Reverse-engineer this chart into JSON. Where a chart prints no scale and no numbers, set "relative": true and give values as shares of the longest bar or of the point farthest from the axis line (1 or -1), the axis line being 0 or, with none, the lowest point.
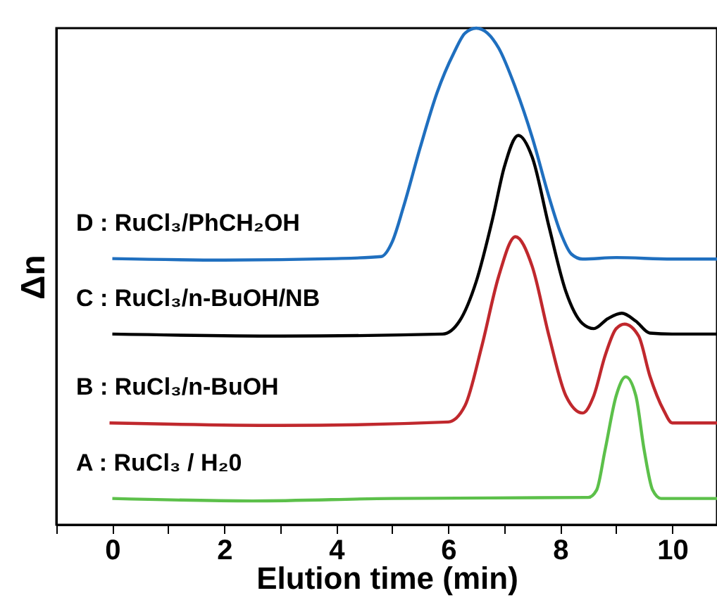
{
  "chart_data": {
    "type": "line",
    "relative": true,
    "xlabel": "Elution time (min)",
    "ylabel": "Δn",
    "xlim": [
      -1,
      10.8
    ],
    "xticks": [
      {
        "value": -1,
        "label": null
      },
      0,
      {
        "value": 1,
        "label": null
      },
      2,
      {
        "value": 3,
        "label": null
      },
      4,
      {
        "value": 5,
        "label": null
      },
      6,
      {
        "value": 7,
        "label": null
      },
      8,
      {
        "value": 9,
        "label": null
      },
      10
    ],
    "series": [
      {
        "name": "D : RuCl₃/PhCH₂OH",
        "color": "#1f6fbf",
        "x": [
          0,
          2,
          4,
          4.8,
          5.0,
          5.2,
          5.5,
          5.8,
          6.1,
          6.3,
          6.5,
          6.7,
          6.9,
          7.2,
          7.5,
          7.8,
          8.0,
          8.2,
          8.4,
          9,
          10,
          10.8
        ],
        "values": [
          0.536,
          0.533,
          0.536,
          0.54,
          0.57,
          0.64,
          0.76,
          0.87,
          0.95,
          0.99,
          1.0,
          0.99,
          0.96,
          0.88,
          0.78,
          0.66,
          0.59,
          0.545,
          0.535,
          0.538,
          0.535,
          0.535
        ]
      },
      {
        "name": "C : RuCl₃/n-BuOH/NB",
        "color": "#000000",
        "x": [
          0,
          3,
          5.9,
          6.2,
          6.5,
          6.8,
          7.0,
          7.25,
          7.5,
          7.8,
          8.1,
          8.4,
          8.6,
          8.85,
          9.1,
          9.35,
          9.6,
          10,
          10.8
        ],
        "values": [
          0.384,
          0.38,
          0.384,
          0.41,
          0.49,
          0.62,
          0.72,
          0.784,
          0.74,
          0.6,
          0.47,
          0.405,
          0.395,
          0.415,
          0.426,
          0.41,
          0.386,
          0.384,
          0.384
        ]
      },
      {
        "name": "B : RuCl₃/n-BuOH",
        "color": "#c0282d",
        "x": [
          -0.05,
          3,
          6.0,
          6.3,
          6.6,
          6.9,
          7.2,
          7.5,
          7.8,
          8.1,
          8.4,
          8.6,
          8.8,
          9.0,
          9.15,
          9.4,
          9.6,
          9.85,
          10.0,
          10.8
        ],
        "values": [
          0.205,
          0.2,
          0.207,
          0.24,
          0.36,
          0.5,
          0.58,
          0.52,
          0.38,
          0.26,
          0.225,
          0.26,
          0.34,
          0.395,
          0.404,
          0.38,
          0.3,
          0.23,
          0.205,
          0.205
        ]
      },
      {
        "name": "A : RuCl₃ / H₂0",
        "color": "#5cc04a",
        "x": [
          0,
          2.5,
          5,
          8.5,
          8.65,
          8.8,
          9.0,
          9.17,
          9.35,
          9.5,
          9.65,
          9.8,
          10.8
        ],
        "values": [
          0.053,
          0.048,
          0.053,
          0.055,
          0.07,
          0.15,
          0.26,
          0.298,
          0.26,
          0.15,
          0.07,
          0.053,
          0.053
        ]
      }
    ]
  }
}
